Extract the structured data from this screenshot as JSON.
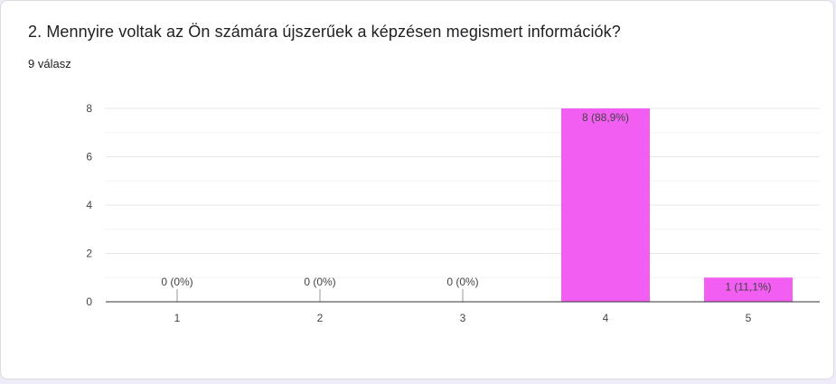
{
  "question": {
    "title": "2. Mennyire voltak az Ön számára újszerűek a képzésen megismert információk?",
    "response_count": "9 válasz"
  },
  "chart_data": {
    "type": "bar",
    "categories": [
      "1",
      "2",
      "3",
      "4",
      "5"
    ],
    "values": [
      0,
      0,
      0,
      8,
      1
    ],
    "data_labels": [
      "0 (0%)",
      "0 (0%)",
      "0 (0%)",
      "8 (88,9%)",
      "1 (11,1%)"
    ],
    "y_ticks": [
      "0",
      "2",
      "4",
      "6",
      "8"
    ],
    "ylim": [
      0,
      8
    ],
    "grid": true,
    "bar_color": "#f25df2",
    "baseline_color": "#333333",
    "grid_color": "#e6e6e6"
  }
}
